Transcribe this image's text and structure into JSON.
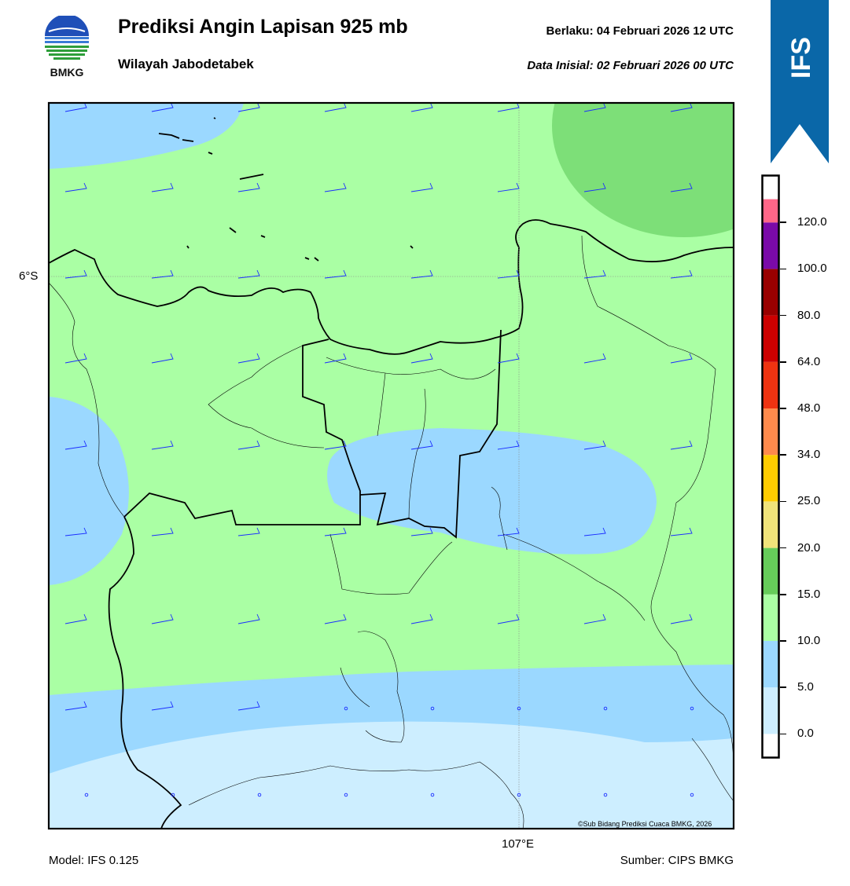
{
  "header": {
    "logo_text": "BMKG",
    "title": "Prediksi Angin Lapisan 925 mb",
    "subtitle": "Wilayah Jabodetabek",
    "valid": "Berlaku:  04 Februari 2026 12 UTC",
    "initial": "Data Inisial:  02 Februari 2026 00 UTC",
    "model_badge": "IFS"
  },
  "map": {
    "lat_label": "6°S",
    "lon_label": "107°E",
    "copyright": "©Sub Bidang Prediksi Cuaca BMKG, 2026",
    "wind_speed_class_colors": {
      "0-5": "#cdeeff",
      "5-10": "#9bd8ff",
      "10-15": "#aaffa4",
      "15-20": "#7ddf78"
    },
    "barb_color": "#1a2cff"
  },
  "colorbar": {
    "ticks": [
      "0.0",
      "5.0",
      "10.0",
      "15.0",
      "20.0",
      "25.0",
      "34.0",
      "48.0",
      "64.0",
      "80.0",
      "100.0",
      "120.0"
    ],
    "colors": [
      "#ffffff",
      "#cdeeff",
      "#9bd8ff",
      "#aaffa4",
      "#66cc5a",
      "#f0e37a",
      "#ffcc00",
      "#ff8a4c",
      "#ee3311",
      "#cc0000",
      "#990000",
      "#7a0aa8",
      "#ff6688"
    ]
  },
  "footer": {
    "model": "Model: IFS 0.125",
    "source": "Sumber: CIPS BMKG"
  }
}
